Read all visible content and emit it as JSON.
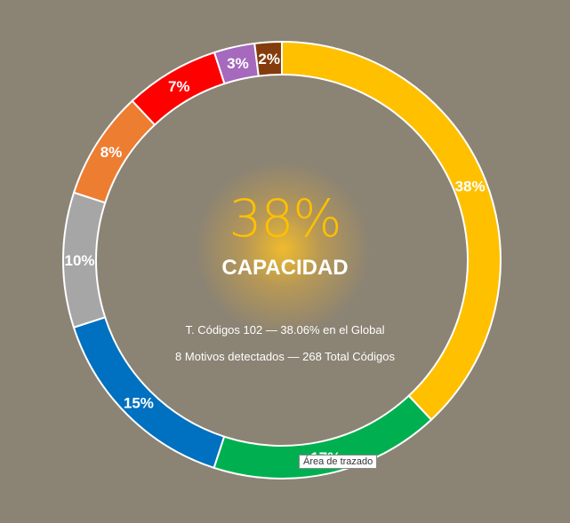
{
  "chart_data": {
    "type": "pie",
    "variant": "doughnut",
    "slices": [
      {
        "label": "38%",
        "value": 38.06,
        "color": "#ffc000"
      },
      {
        "label": "17%",
        "value": 17,
        "color": "#00b050"
      },
      {
        "label": "15%",
        "value": 15,
        "color": "#0070c0"
      },
      {
        "label": "10%",
        "value": 10,
        "color": "#a6a6a6"
      },
      {
        "label": "8%",
        "value": 8,
        "color": "#ed7d31"
      },
      {
        "label": "7%",
        "value": 7,
        "color": "#ff0000"
      },
      {
        "label": "3%",
        "value": 3,
        "color": "#a569bd"
      },
      {
        "label": "2%",
        "value": 2,
        "color": "#843c0c"
      }
    ]
  },
  "center": {
    "percent": "38%",
    "label": "CAPACIDAD",
    "info_line_1": "T. Códigos 102 — 38.06% en el Global",
    "info_line_2": "8 Motivos detectados — 268 Total Códigos"
  },
  "tooltip": "Área de trazado",
  "colors": {
    "background": "#8b8374",
    "accent": "#ffc000"
  }
}
